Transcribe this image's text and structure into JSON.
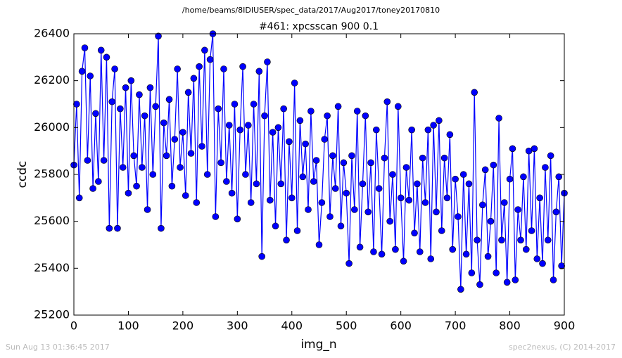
{
  "chart_data": {
    "type": "line",
    "suptitle": "/home/beams/8IDIUSER/spec_data/2017/Aug2017/toney20170810",
    "title": "#461: xpcsscan 900 0.1",
    "xlabel": "img_n",
    "ylabel": "ccdc",
    "footer_left": "Sun Aug 13 01:36:45 2017",
    "footer_right": "spec2nexus, (C) 2014-2017",
    "xlim": [
      0,
      900
    ],
    "ylim": [
      25200,
      26400
    ],
    "xticks": [
      0,
      100,
      200,
      300,
      400,
      500,
      600,
      700,
      800,
      900
    ],
    "yticks": [
      25200,
      25400,
      25600,
      25800,
      26000,
      26200,
      26400
    ],
    "x": [
      0,
      5,
      10,
      15,
      20,
      25,
      30,
      35,
      40,
      45,
      50,
      55,
      60,
      65,
      70,
      75,
      80,
      85,
      90,
      95,
      100,
      105,
      110,
      115,
      120,
      125,
      130,
      135,
      140,
      145,
      150,
      155,
      160,
      165,
      170,
      175,
      180,
      185,
      190,
      195,
      200,
      205,
      210,
      215,
      220,
      225,
      230,
      235,
      240,
      245,
      250,
      255,
      260,
      265,
      270,
      275,
      280,
      285,
      290,
      295,
      300,
      305,
      310,
      315,
      320,
      325,
      330,
      335,
      340,
      345,
      350,
      355,
      360,
      365,
      370,
      375,
      380,
      385,
      390,
      395,
      400,
      405,
      410,
      415,
      420,
      425,
      430,
      435,
      440,
      445,
      450,
      455,
      460,
      465,
      470,
      475,
      480,
      485,
      490,
      495,
      500,
      505,
      510,
      515,
      520,
      525,
      530,
      535,
      540,
      545,
      550,
      555,
      560,
      565,
      570,
      575,
      580,
      585,
      590,
      595,
      600,
      605,
      610,
      615,
      620,
      625,
      630,
      635,
      640,
      645,
      650,
      655,
      660,
      665,
      670,
      675,
      680,
      685,
      690,
      695,
      700,
      705,
      710,
      715,
      720,
      725,
      730,
      735,
      740,
      745,
      750,
      755,
      760,
      765,
      770,
      775,
      780,
      785,
      790,
      795,
      800,
      805,
      810,
      815,
      820,
      825,
      830,
      835,
      840,
      845,
      850,
      855,
      860,
      865,
      870,
      875,
      880,
      885,
      890,
      895,
      900
    ],
    "series": [
      {
        "name": "ccdc",
        "color": "#0000ff",
        "values": [
          25840,
          26100,
          25700,
          26240,
          26340,
          25860,
          26220,
          25740,
          26060,
          25770,
          26330,
          25860,
          26300,
          25570,
          26110,
          26250,
          25570,
          26080,
          25830,
          26170,
          25720,
          26200,
          25880,
          25750,
          26140,
          25830,
          26050,
          25650,
          26170,
          25800,
          26090,
          26390,
          25570,
          26020,
          25880,
          26120,
          25750,
          25950,
          26250,
          25830,
          25980,
          25710,
          26150,
          25890,
          26210,
          25680,
          26260,
          25920,
          26330,
          25800,
          26290,
          26400,
          25620,
          26080,
          25850,
          26250,
          25770,
          26010,
          25720,
          26100,
          25610,
          25990,
          26260,
          25800,
          26010,
          25680,
          26100,
          25760,
          26240,
          25450,
          26050,
          26280,
          25690,
          25980,
          25580,
          26000,
          25760,
          26080,
          25520,
          25940,
          25700,
          26190,
          25560,
          26030,
          25790,
          25930,
          25650,
          26070,
          25770,
          25860,
          25500,
          25680,
          25950,
          26050,
          25620,
          25880,
          25740,
          26090,
          25580,
          25850,
          25720,
          25420,
          25880,
          25650,
          26070,
          25490,
          25760,
          26050,
          25640,
          25850,
          25470,
          25990,
          25740,
          25460,
          25870,
          26110,
          25600,
          25800,
          25480,
          26090,
          25700,
          25430,
          25830,
          25690,
          25990,
          25550,
          25760,
          25470,
          25870,
          25680,
          25990,
          25440,
          26010,
          25640,
          26030,
          25560,
          25870,
          25700,
          25970,
          25480,
          25780,
          25620,
          25310,
          25800,
          25460,
          25760,
          25380,
          26150,
          25520,
          25330,
          25670,
          25820,
          25450,
          25600,
          25840,
          25380,
          26040,
          25520,
          25680,
          25340,
          25780,
          25910,
          25350,
          25650,
          25520,
          25790,
          25480,
          25900,
          25560,
          25910,
          25440,
          25700,
          25420,
          25830,
          25520,
          25880,
          25350,
          25640,
          25790,
          25410,
          25720
        ]
      }
    ]
  }
}
